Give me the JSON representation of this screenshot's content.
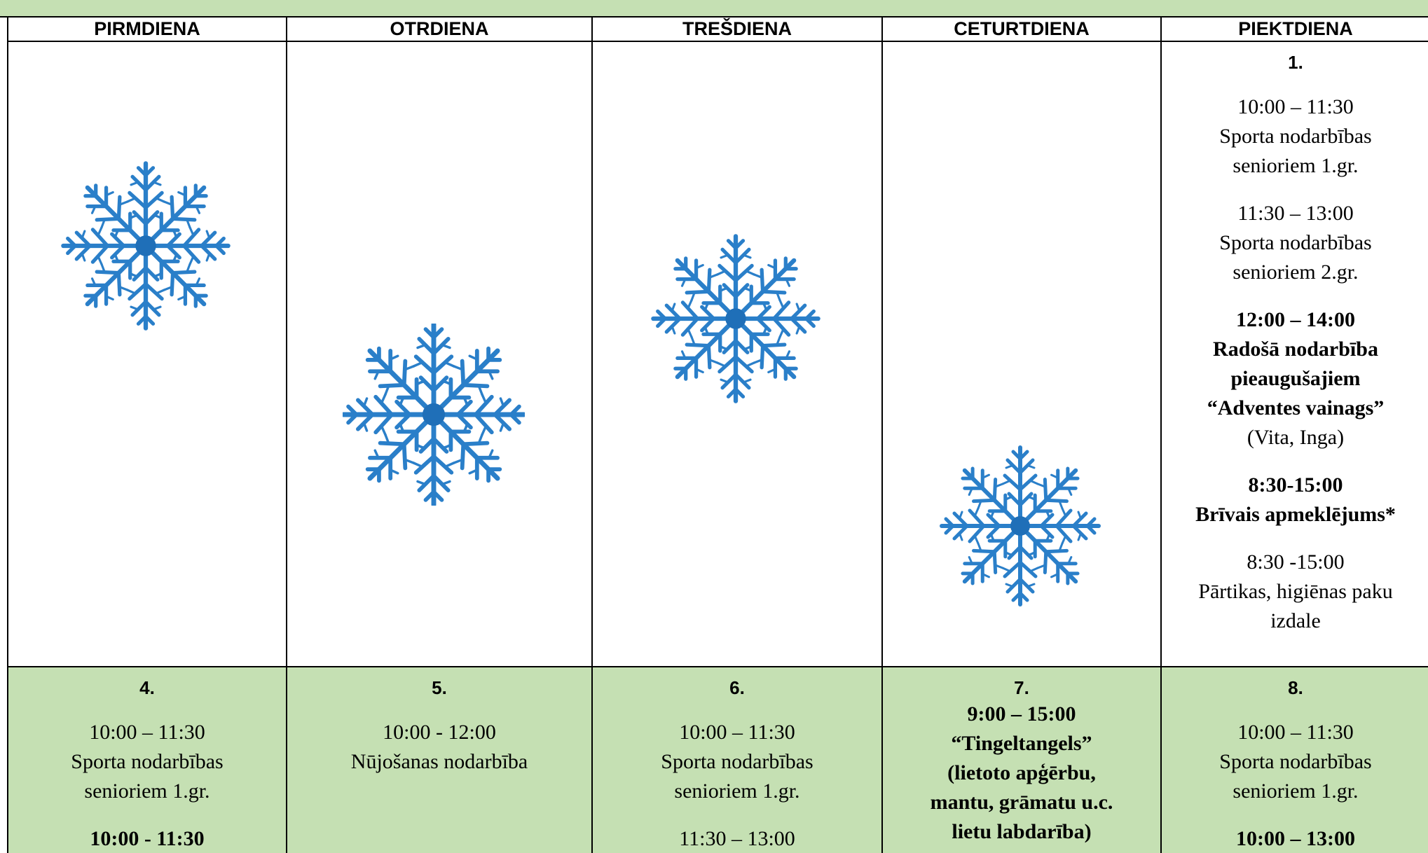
{
  "table": {
    "days": [
      "PIRMDIENA",
      "OTRDIENA",
      "TREŠDIENA",
      "CETURTDIENA",
      "PIEKTDIENA"
    ],
    "weeks": [
      {
        "fri": {
          "date": "1.",
          "events": [
            {
              "lines": [
                "10:00 – 11:30",
                "Sporta nodarbības",
                "senioriem 1.gr."
              ]
            },
            {
              "lines": [
                "11:30 – 13:00",
                "Sporta nodarbības",
                "senioriem 2.gr."
              ]
            },
            {
              "bold": [
                "12:00 – 14:00",
                "Radošā nodarbība",
                "pieaugušajiem",
                "“Adventes vainags”"
              ],
              "lines": [
                "(Vita, Inga)"
              ]
            },
            {
              "bold": [
                "8:30-15:00",
                "Brīvais apmeklējums*"
              ]
            },
            {
              "lines": [
                "8:30 -15:00",
                "Pārtikas, higiēnas paku",
                "izdale"
              ]
            }
          ]
        }
      },
      {
        "mon": {
          "date": "4.",
          "events": [
            {
              "lines": [
                "10:00 – 11:30",
                "Sporta nodarbības",
                "senioriem 1.gr."
              ]
            },
            {
              "bold": [
                "10:00 - 11:30"
              ]
            }
          ]
        },
        "tue": {
          "date": "5.",
          "events": [
            {
              "lines": [
                "10:00 - 12:00",
                "Nūjošanas nodarbība"
              ]
            }
          ]
        },
        "wed": {
          "date": "6.",
          "events": [
            {
              "lines": [
                "10:00 – 11:30",
                "Sporta nodarbības",
                "senioriem 1.gr."
              ]
            },
            {
              "lines": [
                "11:30 – 13:00"
              ]
            }
          ]
        },
        "thu": {
          "date": "7.",
          "events": [
            {
              "bold": [
                "9:00 – 15:00",
                "“Tingeltangels”",
                "(lietoto apģērbu,",
                "mantu, grāmatu u.c.",
                "lietu labdarība)"
              ]
            }
          ]
        },
        "fri": {
          "date": "8.",
          "events": [
            {
              "lines": [
                "10:00 – 11:30",
                "Sporta nodarbības",
                "senioriem 1.gr."
              ]
            },
            {
              "bold": [
                "10:00 – 13:00"
              ]
            }
          ]
        }
      }
    ]
  }
}
